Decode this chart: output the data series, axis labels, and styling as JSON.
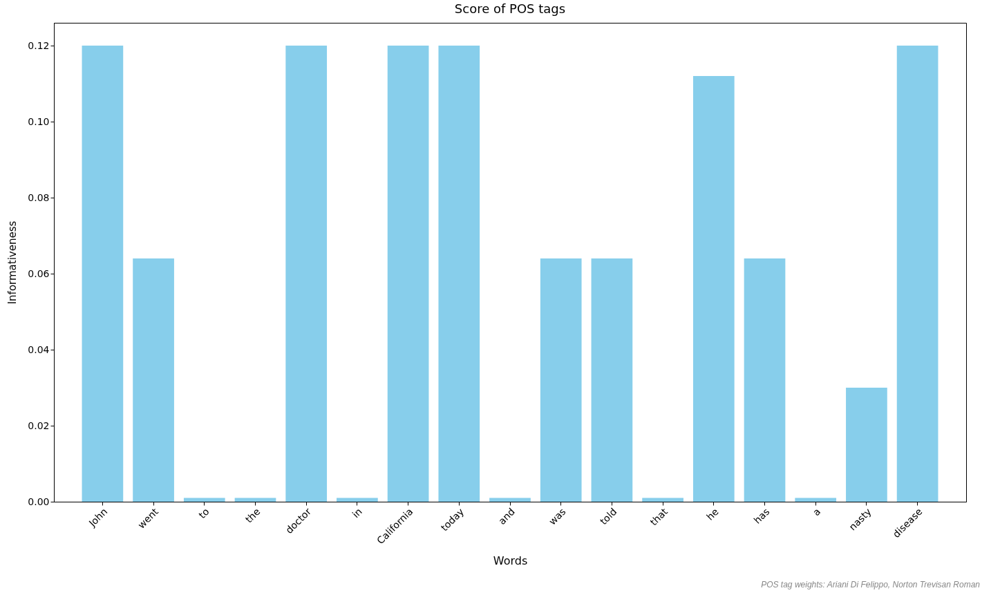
{
  "chart_data": {
    "type": "bar",
    "title": "Score of POS tags",
    "xlabel": "Words",
    "ylabel": "Informativeness",
    "categories": [
      "John",
      "went",
      "to",
      "the",
      "doctor",
      "in",
      "California",
      "today",
      "and",
      "was",
      "told",
      "that",
      "he",
      "has",
      "a",
      "nasty",
      "disease"
    ],
    "values": [
      0.12,
      0.064,
      0.001,
      0.001,
      0.12,
      0.001,
      0.12,
      0.12,
      0.001,
      0.064,
      0.064,
      0.001,
      0.112,
      0.064,
      0.001,
      0.03,
      0.12
    ],
    "color": "#87ceeb",
    "ylim": [
      0,
      0.126
    ],
    "yticks": [
      {
        "value": 0,
        "label": "0.00"
      },
      {
        "value": 0.02,
        "label": "0.02"
      },
      {
        "value": 0.04,
        "label": "0.04"
      },
      {
        "value": 0.06,
        "label": "0.06"
      },
      {
        "value": 0.08,
        "label": "0.08"
      },
      {
        "value": 0.1,
        "label": "0.10"
      },
      {
        "value": 0.12,
        "label": "0.12"
      }
    ],
    "grid": false,
    "annotations": [
      "POS tag weights: Ariani Di Felippo, Norton Trevisan Roman"
    ]
  }
}
